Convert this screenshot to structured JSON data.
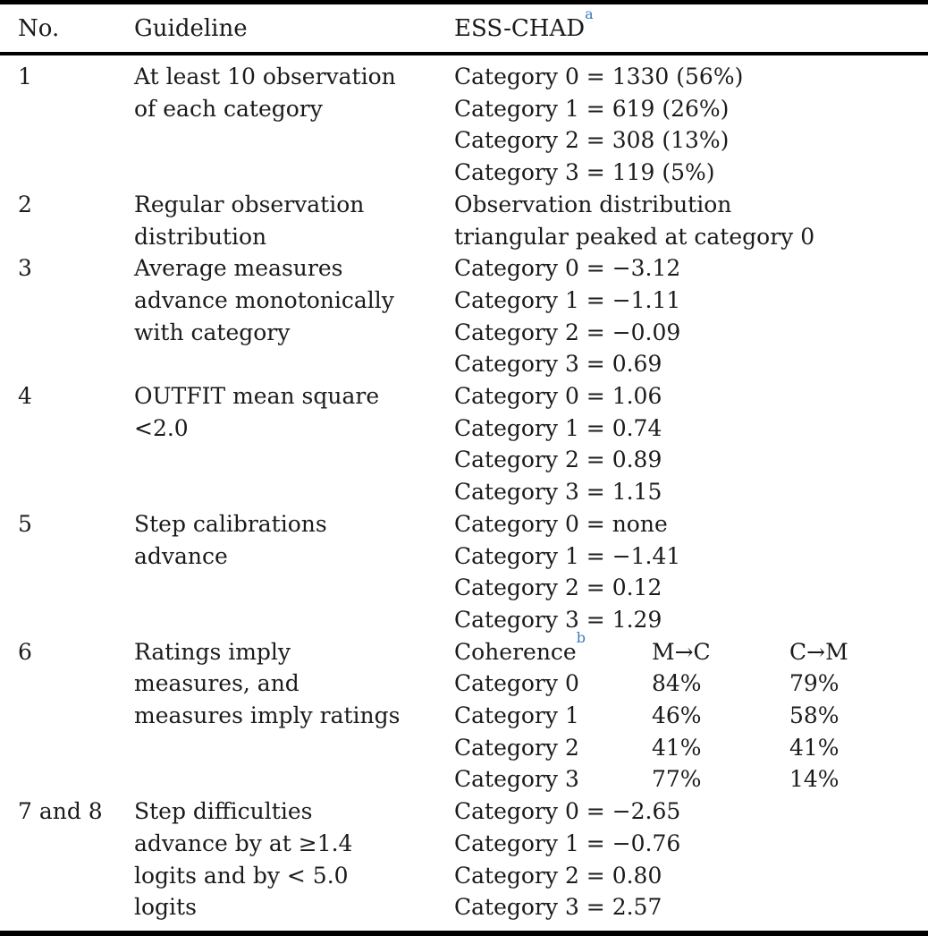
{
  "accent_colors": {
    "footnote_marker": "#3a7bbd",
    "rule": "#000000",
    "text": "#1b1b1b"
  },
  "table": {
    "headers": {
      "no": "No.",
      "guideline": "Guideline",
      "value": "ESS-CHAD",
      "value_sup": "a"
    },
    "rows": [
      {
        "no": "1",
        "guideline_lines": [
          "At least 10 observation",
          "of each category"
        ],
        "value_lines": [
          "Category 0 = 1330 (56%)",
          "Category 1 = 619 (26%)",
          "Category 2 = 308 (13%)",
          "Category 3 = 119 (5%)"
        ]
      },
      {
        "no": "2",
        "guideline_lines": [
          "Regular observation",
          "distribution"
        ],
        "value_lines": [
          "Observation distribution",
          "triangular peaked at category 0"
        ]
      },
      {
        "no": "3",
        "guideline_lines": [
          "Average measures",
          "advance monotonically",
          "with category"
        ],
        "value_lines": [
          "Category 0 = −3.12",
          "Category 1 = −1.11",
          "Category 2 = −0.09",
          "Category 3 = 0.69"
        ]
      },
      {
        "no": "4",
        "guideline_lines": [
          "OUTFIT mean square",
          "<2.0"
        ],
        "value_lines": [
          "Category 0 = 1.06",
          "Category 1 = 0.74",
          "Category 2 = 0.89",
          "Category 3 = 1.15"
        ]
      },
      {
        "no": "5",
        "guideline_lines": [
          "Step calibrations",
          "advance"
        ],
        "value_lines": [
          "Category 0 = none",
          "Category 1 = −1.41",
          "Category 2 = 0.12",
          "Category 3 = 1.29"
        ]
      },
      {
        "no": "6",
        "guideline_lines": [
          "Ratings imply",
          "measures, and",
          "measures imply ratings"
        ],
        "coherence": {
          "header": {
            "label": "Coherence",
            "sup": "b",
            "col1": "M→C",
            "col2": "C→M"
          },
          "rows": [
            [
              "Category 0",
              "84%",
              "79%"
            ],
            [
              "Category 1",
              "46%",
              "58%"
            ],
            [
              "Category 2",
              "41%",
              "41%"
            ],
            [
              "Category 3",
              "77%",
              "14%"
            ]
          ]
        }
      },
      {
        "no": "7 and 8",
        "guideline_lines": [
          "Step difficulties",
          "advance by at ≥1.4",
          "logits and by < 5.0",
          "logits"
        ],
        "value_lines": [
          "Category 0 = −2.65",
          "Category 1 = −0.76",
          "Category 2 = 0.80",
          "Category 3 = 2.57"
        ]
      }
    ]
  }
}
